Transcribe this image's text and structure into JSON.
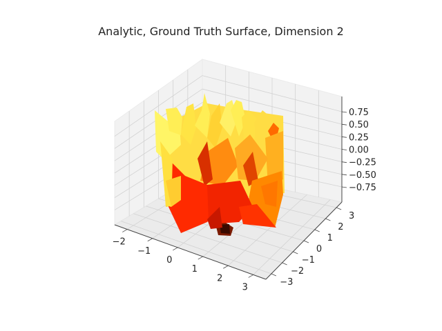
{
  "chart_data": {
    "type": "surface3d",
    "title": "Analytic, Ground Truth Surface, Dimension 2",
    "xlabel": "",
    "ylabel": "",
    "zlabel": "",
    "x_ticks": [
      "−2",
      "−1",
      "0",
      "1",
      "2",
      "3"
    ],
    "y_ticks": [
      "−3",
      "−2",
      "−1",
      "0",
      "1",
      "2",
      "3"
    ],
    "z_ticks": [
      "0.75",
      "0.50",
      "0.25",
      "0.00",
      "−0.25",
      "−0.50",
      "−0.75"
    ],
    "x_range": [
      -2.5,
      3.5
    ],
    "y_range": [
      -3.5,
      3.5
    ],
    "z_range": [
      -1.0,
      1.0
    ],
    "colormap": "autumn",
    "colors": {
      "low": "#ff0000",
      "high": "#ffff00"
    },
    "grid": true
  }
}
